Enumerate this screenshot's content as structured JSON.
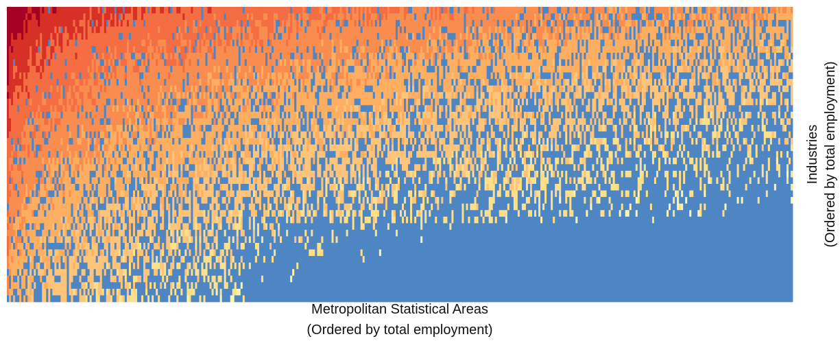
{
  "chart_data": {
    "type": "heatmap",
    "title": "",
    "xlabel": "Metropolitan Statistical Areas",
    "xlabel_note": "(Ordered by total employment)",
    "ylabel": "Industries",
    "ylabel_note": "(Ordered by total employment)",
    "x_order": "descending total employment (largest MSA at left)",
    "y_order": "descending total employment (largest industry at top)",
    "n_columns_approx": 380,
    "n_rows_approx": 45,
    "zero_color": "#4e86c4",
    "color_scale": [
      "#fff3b0",
      "#fee08b",
      "#fdc47a",
      "#fdae61",
      "#f98c4f",
      "#f46d43",
      "#d73027",
      "#a50026"
    ],
    "pattern": "Values are highest in the top-left corner (large MSAs x large industries) and decline toward the right and bottom; blue (zero) cells become dominant in the lower rows and right-hand columns."
  }
}
